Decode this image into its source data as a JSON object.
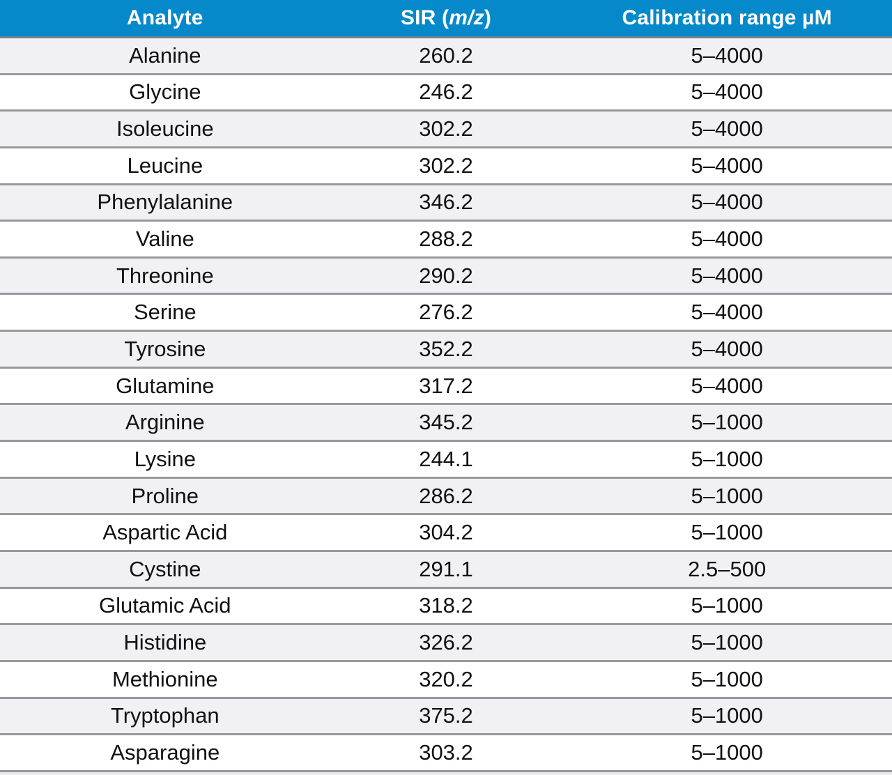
{
  "table": {
    "header": {
      "analyte": "Analyte",
      "sir_prefix": "SIR (",
      "sir_italic": "m/z",
      "sir_suffix": ")",
      "calibration": "Calibration range µM"
    },
    "rows": [
      {
        "analyte": "Alanine",
        "sir": "260.2",
        "range": "5–4000"
      },
      {
        "analyte": "Glycine",
        "sir": "246.2",
        "range": "5–4000"
      },
      {
        "analyte": "Isoleucine",
        "sir": "302.2",
        "range": "5–4000"
      },
      {
        "analyte": "Leucine",
        "sir": "302.2",
        "range": "5–4000"
      },
      {
        "analyte": "Phenylalanine",
        "sir": "346.2",
        "range": "5–4000"
      },
      {
        "analyte": "Valine",
        "sir": "288.2",
        "range": "5–4000"
      },
      {
        "analyte": "Threonine",
        "sir": "290.2",
        "range": "5–4000"
      },
      {
        "analyte": "Serine",
        "sir": "276.2",
        "range": "5–4000"
      },
      {
        "analyte": "Tyrosine",
        "sir": "352.2",
        "range": "5–4000"
      },
      {
        "analyte": "Glutamine",
        "sir": "317.2",
        "range": "5–4000"
      },
      {
        "analyte": "Arginine",
        "sir": "345.2",
        "range": "5–1000"
      },
      {
        "analyte": "Lysine",
        "sir": "244.1",
        "range": "5–1000"
      },
      {
        "analyte": "Proline",
        "sir": "286.2",
        "range": "5–1000"
      },
      {
        "analyte": "Aspartic Acid",
        "sir": "304.2",
        "range": "5–1000"
      },
      {
        "analyte": "Cystine",
        "sir": "291.1",
        "range": "2.5–500"
      },
      {
        "analyte": "Glutamic Acid",
        "sir": "318.2",
        "range": "5–1000"
      },
      {
        "analyte": "Histidine",
        "sir": "326.2",
        "range": "5–1000"
      },
      {
        "analyte": "Methionine",
        "sir": "320.2",
        "range": "5–1000"
      },
      {
        "analyte": "Tryptophan",
        "sir": "375.2",
        "range": "5–1000"
      },
      {
        "analyte": "Asparagine",
        "sir": "303.2",
        "range": "5–1000"
      }
    ],
    "colors": {
      "header_bg": "#0589cb",
      "header_text": "#ffffff",
      "row_bg": "#ffffff",
      "row_alt_bg": "#f1f1f4",
      "separator": "#98989e",
      "body_text": "#111111"
    }
  }
}
